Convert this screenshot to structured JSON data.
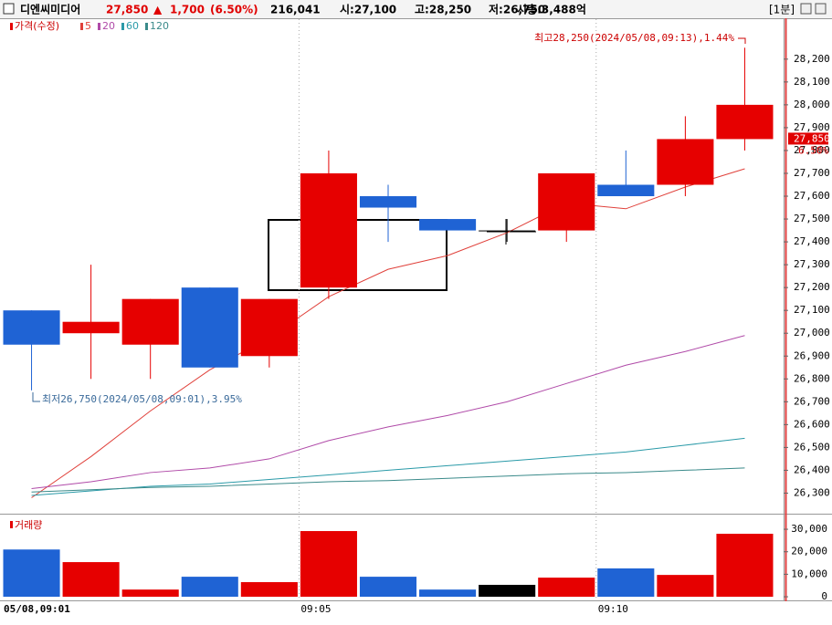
{
  "header": {
    "name": "디엔씨미디어",
    "price": "27,850",
    "arrow": "▲",
    "change": "1,700",
    "change_rate": "(6.50%)",
    "volume": "216,041",
    "open": "시:27,100",
    "high": "고:28,250",
    "low": "저:26,750",
    "market_cap": "시총:3,488억",
    "interval": "[1분]"
  },
  "chart_data": {
    "type": "candlestick",
    "price_legend": "가격(수정)",
    "volume_legend": "거래량",
    "categories": [
      "05/08,09:01",
      null,
      null,
      null,
      null,
      "09:05",
      null,
      null,
      null,
      null,
      "09:10",
      null,
      null
    ],
    "open": [
      27100,
      27000,
      26950,
      27200,
      26900,
      27200,
      27600,
      27500,
      27450,
      27450,
      27650,
      27650,
      28000
    ],
    "high": [
      27100,
      27300,
      27150,
      27200,
      27150,
      27800,
      27650,
      27500,
      27500,
      27700,
      27800,
      27950,
      28250
    ],
    "low": [
      26750,
      26800,
      26800,
      26850,
      26850,
      27150,
      27400,
      27450,
      27400,
      27400,
      27600,
      27600,
      27800
    ],
    "close": [
      26950,
      27050,
      27150,
      26850,
      27150,
      27700,
      27550,
      27450,
      27450,
      27700,
      27600,
      27850,
      27850
    ],
    "colors": [
      "#1f63d4",
      "#e60000",
      "#e60000",
      "#1f63d4",
      "#e60000",
      "#e60000",
      "#1f63d4",
      "#1f63d4",
      "#000000",
      "#e60000",
      "#1f63d4",
      "#e60000",
      "#e60000"
    ],
    "series": [
      {
        "name": "5",
        "color": "#e0403a",
        "values": [
          26280,
          26460,
          26660,
          26840,
          26980,
          27160,
          27280,
          27340,
          27440,
          27570,
          27545,
          27640,
          27720
        ]
      },
      {
        "name": "20",
        "color": "#b04aa8",
        "values": [
          26320,
          26350,
          26390,
          26410,
          26450,
          26530,
          26590,
          26640,
          26700,
          26780,
          26860,
          26920,
          26990
        ]
      },
      {
        "name": "60",
        "color": "#2a9aa8",
        "values": [
          26290,
          26310,
          26330,
          26340,
          26360,
          26380,
          26400,
          26420,
          26440,
          26460,
          26480,
          26510,
          26540
        ]
      },
      {
        "name": "120",
        "color": "#3a8a8a",
        "values": [
          26305,
          26315,
          26325,
          26330,
          26340,
          26350,
          26355,
          26365,
          26375,
          26385,
          26390,
          26400,
          26410
        ]
      }
    ],
    "ylim": [
      26210,
      28375
    ],
    "yticks": [
      {
        "value": 26300,
        "label": "26,300"
      },
      {
        "value": 26400,
        "label": "26,400"
      },
      {
        "value": 26500,
        "label": "26,500"
      },
      {
        "value": 26600,
        "label": "26,600"
      },
      {
        "value": 26700,
        "label": "26,700"
      },
      {
        "value": 26800,
        "label": "26,800"
      },
      {
        "value": 26900,
        "label": "26,900"
      },
      {
        "value": 27000,
        "label": "27,000"
      },
      {
        "value": 27100,
        "label": "27,100"
      },
      {
        "value": 27200,
        "label": "27,200"
      },
      {
        "value": 27300,
        "label": "27,300"
      },
      {
        "value": 27400,
        "label": "27,400"
      },
      {
        "value": 27500,
        "label": "27,500"
      },
      {
        "value": 27600,
        "label": "27,600"
      },
      {
        "value": 27700,
        "label": "27,700"
      },
      {
        "value": 27800,
        "label": "27,800"
      },
      {
        "value": 27900,
        "label": "27,900"
      },
      {
        "value": 28000,
        "label": "28,000"
      },
      {
        "value": 28100,
        "label": "28,100"
      },
      {
        "value": 28200,
        "label": "28,200"
      }
    ],
    "current_price_tag": "27,850",
    "current_change_tag": "6.50%",
    "max_annotation": "최고28,250(2024/05/08,09:13),1.44%",
    "min_annotation": "최저26,750(2024/05/08,09:01),3.95%",
    "volume": [
      21000,
      15400,
      3200,
      8900,
      6500,
      29200,
      8900,
      3200,
      5300,
      8500,
      12600,
      9700,
      28000
    ],
    "volume_ylim": [
      -1600,
      35700
    ],
    "volume_yticks": [
      0,
      {
        "value": 10000,
        "label": "10,000"
      },
      {
        "value": 20000,
        "label": "20,000"
      },
      {
        "value": 30000,
        "label": "30,000"
      }
    ]
  }
}
